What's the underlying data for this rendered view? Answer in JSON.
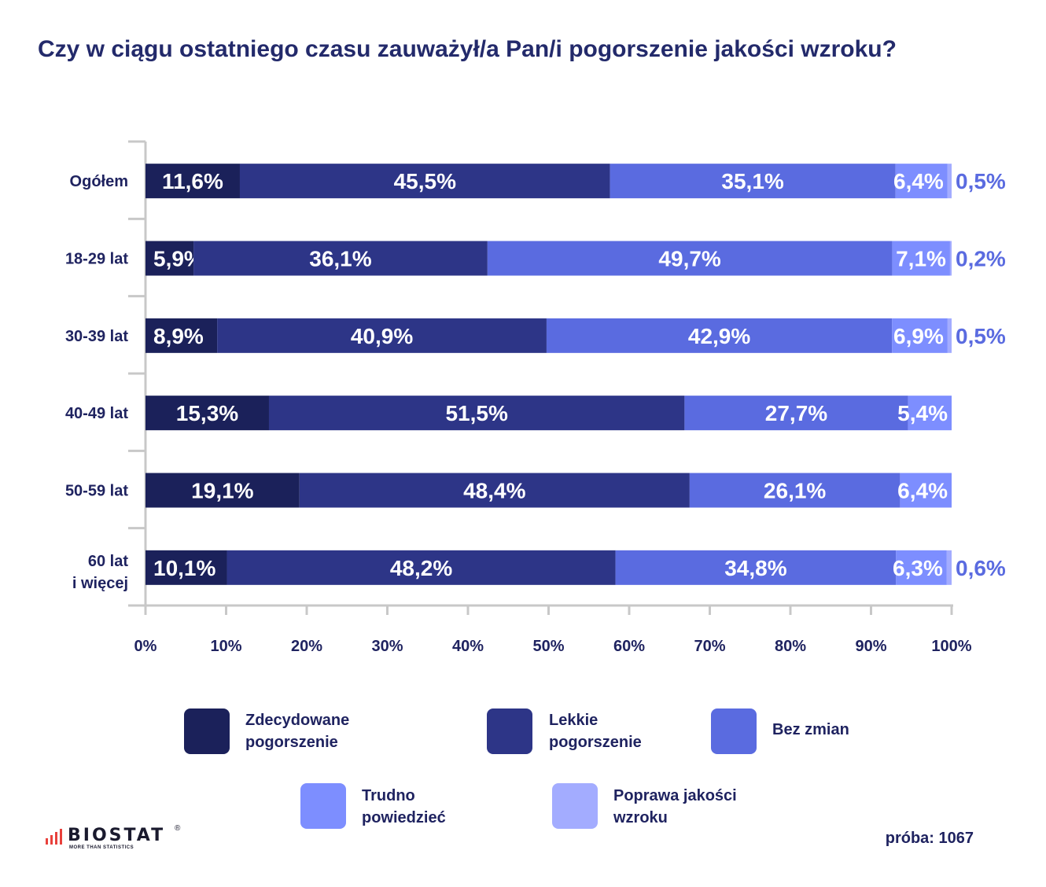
{
  "title": "Czy w ciągu ostatniego czasu zauważył/a Pan/i pogorszenie jakości wzroku?",
  "colors": {
    "series": [
      "#1b215a",
      "#2d3587",
      "#5a6be0",
      "#7d8eff",
      "#a3acff"
    ],
    "axis": "#c8c8c8",
    "outside_label": "#5a6be0",
    "text": "#1f2360"
  },
  "chart_data": {
    "type": "bar",
    "orientation": "horizontal",
    "stacked": true,
    "title": "Czy w ciągu ostatniego czasu zauważył/a Pan/i pogorszenie jakości wzroku?",
    "categories": [
      "Ogółem",
      "18-29 lat",
      "30-39 lat",
      "40-49 lat",
      "50-59 lat",
      "60 lat i więcej"
    ],
    "series": [
      {
        "name": "Zdecydowane pogorszenie",
        "values": [
          11.6,
          5.9,
          8.9,
          15.3,
          19.1,
          10.1
        ],
        "labels": [
          "11,6%",
          "5,9%",
          "8,9%",
          "15,3%",
          "19,1%",
          "10,1%"
        ]
      },
      {
        "name": "Lekkie pogorszenie",
        "values": [
          45.5,
          36.1,
          40.9,
          51.5,
          48.4,
          48.2
        ],
        "labels": [
          "45,5%",
          "36,1%",
          "40,9%",
          "51,5%",
          "48,4%",
          "48,2%"
        ]
      },
      {
        "name": "Bez zmian",
        "values": [
          35.1,
          49.7,
          42.9,
          27.7,
          26.1,
          34.8
        ],
        "labels": [
          "35,1%",
          "49,7%",
          "42,9%",
          "27,7%",
          "26,1%",
          "34,8%"
        ]
      },
      {
        "name": "Trudno powiedzieć",
        "values": [
          6.4,
          7.1,
          6.9,
          5.4,
          6.4,
          6.3
        ],
        "labels": [
          "6,4%",
          "7,1%",
          "6,9%",
          "5,4%",
          "6,4%",
          "6,3%"
        ]
      },
      {
        "name": "Poprawa jakości wzroku",
        "values": [
          0.5,
          0.2,
          0.5,
          0,
          0,
          0.6
        ],
        "labels": [
          "0,5%",
          "0,2%",
          "0,5%",
          "",
          "",
          "0,6%"
        ]
      }
    ],
    "x_ticks": [
      "0%",
      "10%",
      "20%",
      "30%",
      "40%",
      "50%",
      "60%",
      "70%",
      "80%",
      "90%",
      "100%"
    ],
    "xlim": [
      0,
      100
    ],
    "grid": false,
    "legend_position": "bottom"
  },
  "category_labels": [
    {
      "line1": "Ogółem",
      "line2": ""
    },
    {
      "line1": "18-29 lat",
      "line2": ""
    },
    {
      "line1": "30-39 lat",
      "line2": ""
    },
    {
      "line1": "40-49 lat",
      "line2": ""
    },
    {
      "line1": "50-59 lat",
      "line2": ""
    },
    {
      "line1": "60 lat",
      "line2": "i więcej"
    }
  ],
  "legend": [
    {
      "line1": "Zdecydowane",
      "line2": "pogorszenie"
    },
    {
      "line1": "Lekkie",
      "line2": "pogorszenie"
    },
    {
      "line1": "Bez zmian",
      "line2": ""
    },
    {
      "line1": "Trudno",
      "line2": "powiedzieć"
    },
    {
      "line1": "Poprawa jakości",
      "line2": "wzroku"
    }
  ],
  "sample_note": "próba: 1067",
  "logo": {
    "name": "BIOSTAT",
    "tagline": "MORE THAN STATISTICS",
    "reg": "®"
  }
}
